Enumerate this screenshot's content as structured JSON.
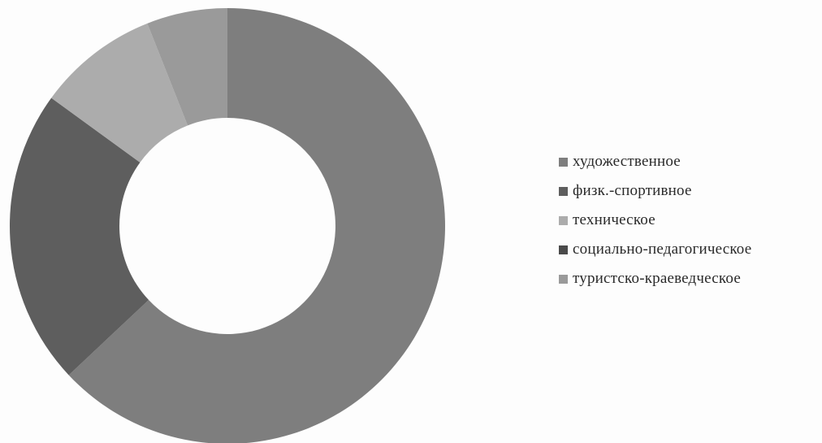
{
  "chart_data": {
    "type": "pie",
    "donut": true,
    "title": "",
    "slices": [
      {
        "label": "художественное",
        "value": 63,
        "color": "#7e7e7e"
      },
      {
        "label": "физк.-спортивное",
        "value": 22,
        "color": "#5e5e5e"
      },
      {
        "label": "техническое",
        "value": 9,
        "color": "#acacac"
      },
      {
        "label": "социально-педагогическое",
        "value": 0,
        "color": "#4a4a4a"
      },
      {
        "label": "туристско-краеведческое",
        "value": 6,
        "color": "#9a9a9a"
      }
    ],
    "legend_position": "right"
  }
}
